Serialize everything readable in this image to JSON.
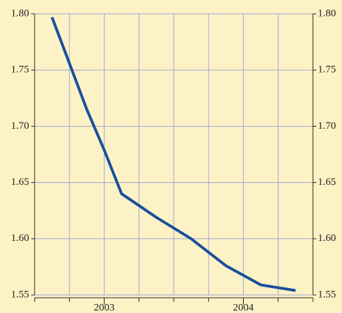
{
  "chart_data": {
    "type": "line",
    "x": [
      2002.625,
      2002.75,
      2002.875,
      2003,
      2003.125,
      2003.375,
      2003.625,
      2003.875,
      2004.125,
      2004.375
    ],
    "series": [
      {
        "color": "#1a4f9c",
        "values": [
          1.797,
          1.756,
          1.715,
          1.679,
          1.64,
          1.619,
          1.6,
          1.576,
          1.559,
          1.554
        ]
      }
    ],
    "xlim": [
      2002.5,
      2004.5
    ],
    "xticks": [
      2003,
      2004
    ],
    "xminorticks": [
      2002.5,
      2002.75,
      2003,
      2003.25,
      2003.5,
      2003.75,
      2004,
      2004.25,
      2004.5
    ],
    "ylim": [
      1.55,
      1.8
    ],
    "yticks": [
      {
        "value": 1.55,
        "label": "1.55"
      },
      {
        "value": 1.6,
        "label": "1.60"
      },
      {
        "value": 1.65,
        "label": "1.65"
      },
      {
        "value": 1.7,
        "label": "1.70"
      },
      {
        "value": 1.75,
        "label": "1.75"
      },
      {
        "value": 1.8,
        "label": "1.80"
      }
    ],
    "y2lim": [
      1.55,
      1.8
    ],
    "y2ticks": [
      {
        "value": 1.55,
        "label": "1.55"
      },
      {
        "value": 1.6,
        "label": "1.60"
      },
      {
        "value": 1.65,
        "label": "1.65"
      },
      {
        "value": 1.7,
        "label": "1.70"
      },
      {
        "value": 1.75,
        "label": "1.75"
      },
      {
        "value": 1.8,
        "label": "1.80"
      }
    ],
    "grid": true
  }
}
